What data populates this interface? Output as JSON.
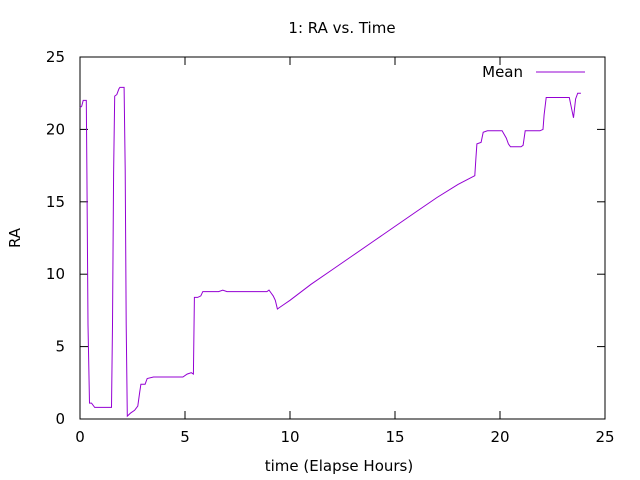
{
  "chart_data": {
    "type": "line",
    "title": "1: RA vs. Time",
    "xlabel": "time (Elapse Hours)",
    "ylabel": "RA",
    "xlim": [
      0,
      25
    ],
    "ylim": [
      0,
      25
    ],
    "xticks": [
      0,
      5,
      10,
      15,
      20,
      25
    ],
    "yticks": [
      0,
      5,
      10,
      15,
      20,
      25
    ],
    "grid": false,
    "legend_position": "top-right",
    "series": [
      {
        "name": "Mean",
        "color": "#9400d3",
        "points": [
          [
            0.0,
            21.5
          ],
          [
            0.08,
            21.6
          ],
          [
            0.15,
            22.0
          ],
          [
            0.3,
            22.0
          ],
          [
            0.33,
            17.0
          ],
          [
            0.38,
            6.5
          ],
          [
            0.45,
            1.1
          ],
          [
            0.55,
            1.1
          ],
          [
            0.7,
            0.8
          ],
          [
            1.0,
            0.8
          ],
          [
            1.3,
            0.8
          ],
          [
            1.5,
            0.8
          ],
          [
            1.55,
            6.5
          ],
          [
            1.6,
            17.0
          ],
          [
            1.65,
            22.3
          ],
          [
            1.75,
            22.4
          ],
          [
            1.85,
            22.8
          ],
          [
            1.9,
            22.9
          ],
          [
            2.1,
            22.9
          ],
          [
            2.15,
            17.2
          ],
          [
            2.2,
            6.5
          ],
          [
            2.25,
            0.2
          ],
          [
            2.4,
            0.4
          ],
          [
            2.6,
            0.6
          ],
          [
            2.75,
            0.9
          ],
          [
            2.85,
            1.9
          ],
          [
            2.9,
            2.4
          ],
          [
            3.1,
            2.4
          ],
          [
            3.2,
            2.8
          ],
          [
            3.5,
            2.9
          ],
          [
            4.0,
            2.9
          ],
          [
            4.5,
            2.9
          ],
          [
            4.9,
            2.9
          ],
          [
            5.1,
            3.1
          ],
          [
            5.3,
            3.2
          ],
          [
            5.4,
            3.1
          ],
          [
            5.45,
            8.4
          ],
          [
            5.6,
            8.4
          ],
          [
            5.75,
            8.5
          ],
          [
            5.85,
            8.8
          ],
          [
            6.2,
            8.8
          ],
          [
            6.6,
            8.8
          ],
          [
            6.8,
            8.9
          ],
          [
            7.0,
            8.8
          ],
          [
            7.5,
            8.8
          ],
          [
            8.0,
            8.8
          ],
          [
            8.5,
            8.8
          ],
          [
            8.9,
            8.8
          ],
          [
            9.0,
            8.9
          ],
          [
            9.1,
            8.7
          ],
          [
            9.2,
            8.5
          ],
          [
            9.3,
            8.2
          ],
          [
            9.4,
            7.6
          ],
          [
            9.5,
            7.7
          ],
          [
            9.7,
            7.9
          ],
          [
            10.0,
            8.2
          ],
          [
            11.0,
            9.3
          ],
          [
            12.0,
            10.3
          ],
          [
            13.0,
            11.3
          ],
          [
            14.0,
            12.3
          ],
          [
            15.0,
            13.3
          ],
          [
            16.0,
            14.3
          ],
          [
            17.0,
            15.3
          ],
          [
            18.0,
            16.2
          ],
          [
            18.8,
            16.8
          ],
          [
            18.85,
            18.0
          ],
          [
            18.9,
            19.0
          ],
          [
            19.1,
            19.1
          ],
          [
            19.2,
            19.8
          ],
          [
            19.4,
            19.9
          ],
          [
            20.1,
            19.9
          ],
          [
            20.3,
            19.4
          ],
          [
            20.4,
            19.0
          ],
          [
            20.5,
            18.8
          ],
          [
            21.0,
            18.8
          ],
          [
            21.1,
            18.9
          ],
          [
            21.2,
            19.9
          ],
          [
            21.9,
            19.9
          ],
          [
            22.05,
            20.0
          ],
          [
            22.1,
            21.0
          ],
          [
            22.2,
            22.2
          ],
          [
            22.6,
            22.2
          ],
          [
            23.0,
            22.2
          ],
          [
            23.3,
            22.2
          ],
          [
            23.4,
            21.5
          ],
          [
            23.5,
            20.8
          ],
          [
            23.6,
            22.1
          ],
          [
            23.7,
            22.5
          ],
          [
            23.85,
            22.5
          ]
        ]
      }
    ]
  }
}
